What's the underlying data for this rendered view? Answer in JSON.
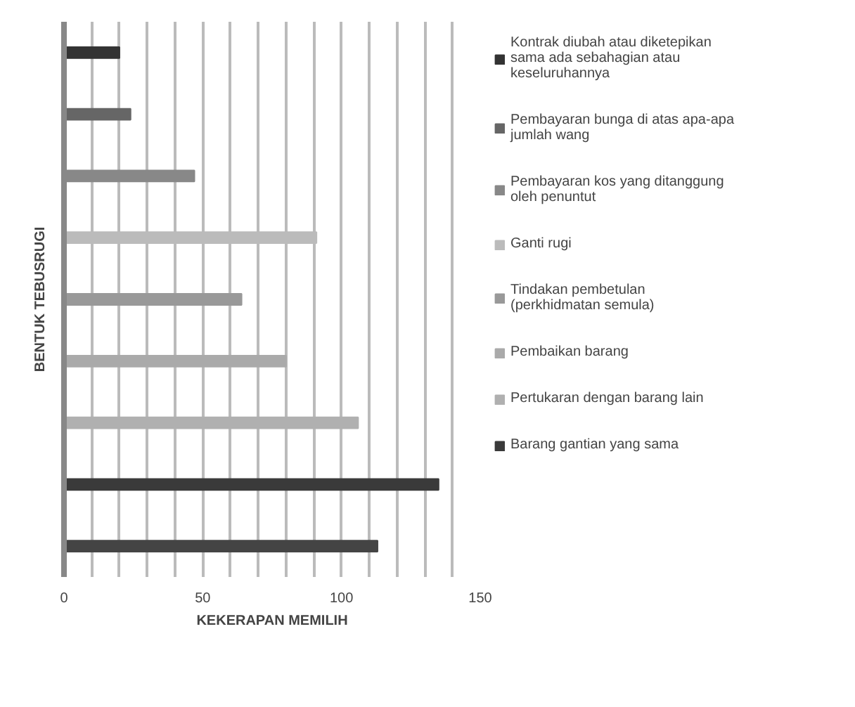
{
  "chart_data": {
    "type": "bar",
    "orientation": "horizontal",
    "xlabel": "KEKERAPAN MEMILIH",
    "ylabel": "BENTUK TEBUSRUGI",
    "categories": [
      null,
      null,
      null,
      null,
      null,
      null,
      null,
      null,
      null
    ],
    "series": [
      {
        "name": "Kontrak diubah atau diketepikan sama ada sebahagian atau keseluruhannya",
        "color": "#333333",
        "values": [
          20,
          null,
          null,
          null,
          null,
          null,
          null,
          null,
          null
        ]
      },
      {
        "name": "Pembayaran bunga di atas apa-apa jumlah wang",
        "color": "#666666",
        "values": [
          null,
          24,
          null,
          null,
          null,
          null,
          null,
          null,
          null
        ]
      },
      {
        "name": "Pembayaran kos yang ditanggung oleh penuntut",
        "color": "#888888",
        "values": [
          null,
          null,
          47,
          null,
          null,
          null,
          null,
          null,
          null
        ]
      },
      {
        "name": "Ganti rugi",
        "color": "#bbbbbb",
        "values": [
          null,
          null,
          null,
          91,
          null,
          null,
          null,
          null,
          null
        ]
      },
      {
        "name": "Tindakan pembetulan (perkhidmatan semula)",
        "color": "#999999",
        "values": [
          null,
          null,
          null,
          null,
          64,
          null,
          null,
          null,
          null
        ]
      },
      {
        "name": "Pembaikan barang",
        "color": "#aaaaaa",
        "values": [
          null,
          null,
          null,
          null,
          null,
          80,
          null,
          null,
          null
        ]
      },
      {
        "name": "Pertukaran dengan barang lain",
        "color": "#b0b0b0",
        "values": [
          null,
          null,
          null,
          null,
          null,
          null,
          106,
          null,
          null
        ]
      },
      {
        "name": "Barang gantian yang sama",
        "color": "#3a3a3a",
        "values": [
          null,
          null,
          null,
          null,
          null,
          null,
          null,
          135,
          null
        ]
      },
      {
        "color": "#444444",
        "values": [
          null,
          null,
          null,
          null,
          null,
          null,
          null,
          null,
          113
        ]
      }
    ],
    "xlim": [
      0,
      150
    ],
    "xticks": [
      0,
      {
        "value": 10,
        "label": null
      },
      {
        "value": 20,
        "label": null
      },
      {
        "value": 30,
        "label": null
      },
      {
        "value": 40,
        "label": null
      },
      50,
      {
        "value": 60,
        "label": null
      },
      {
        "value": 70,
        "label": null
      },
      {
        "value": 80,
        "label": null
      },
      {
        "value": 90,
        "label": null
      },
      100,
      {
        "value": 110,
        "label": null
      },
      {
        "value": 120,
        "label": null
      },
      {
        "value": 130,
        "label": null
      },
      {
        "value": 140,
        "label": null
      },
      150
    ],
    "grid": "x",
    "legend": "right"
  }
}
